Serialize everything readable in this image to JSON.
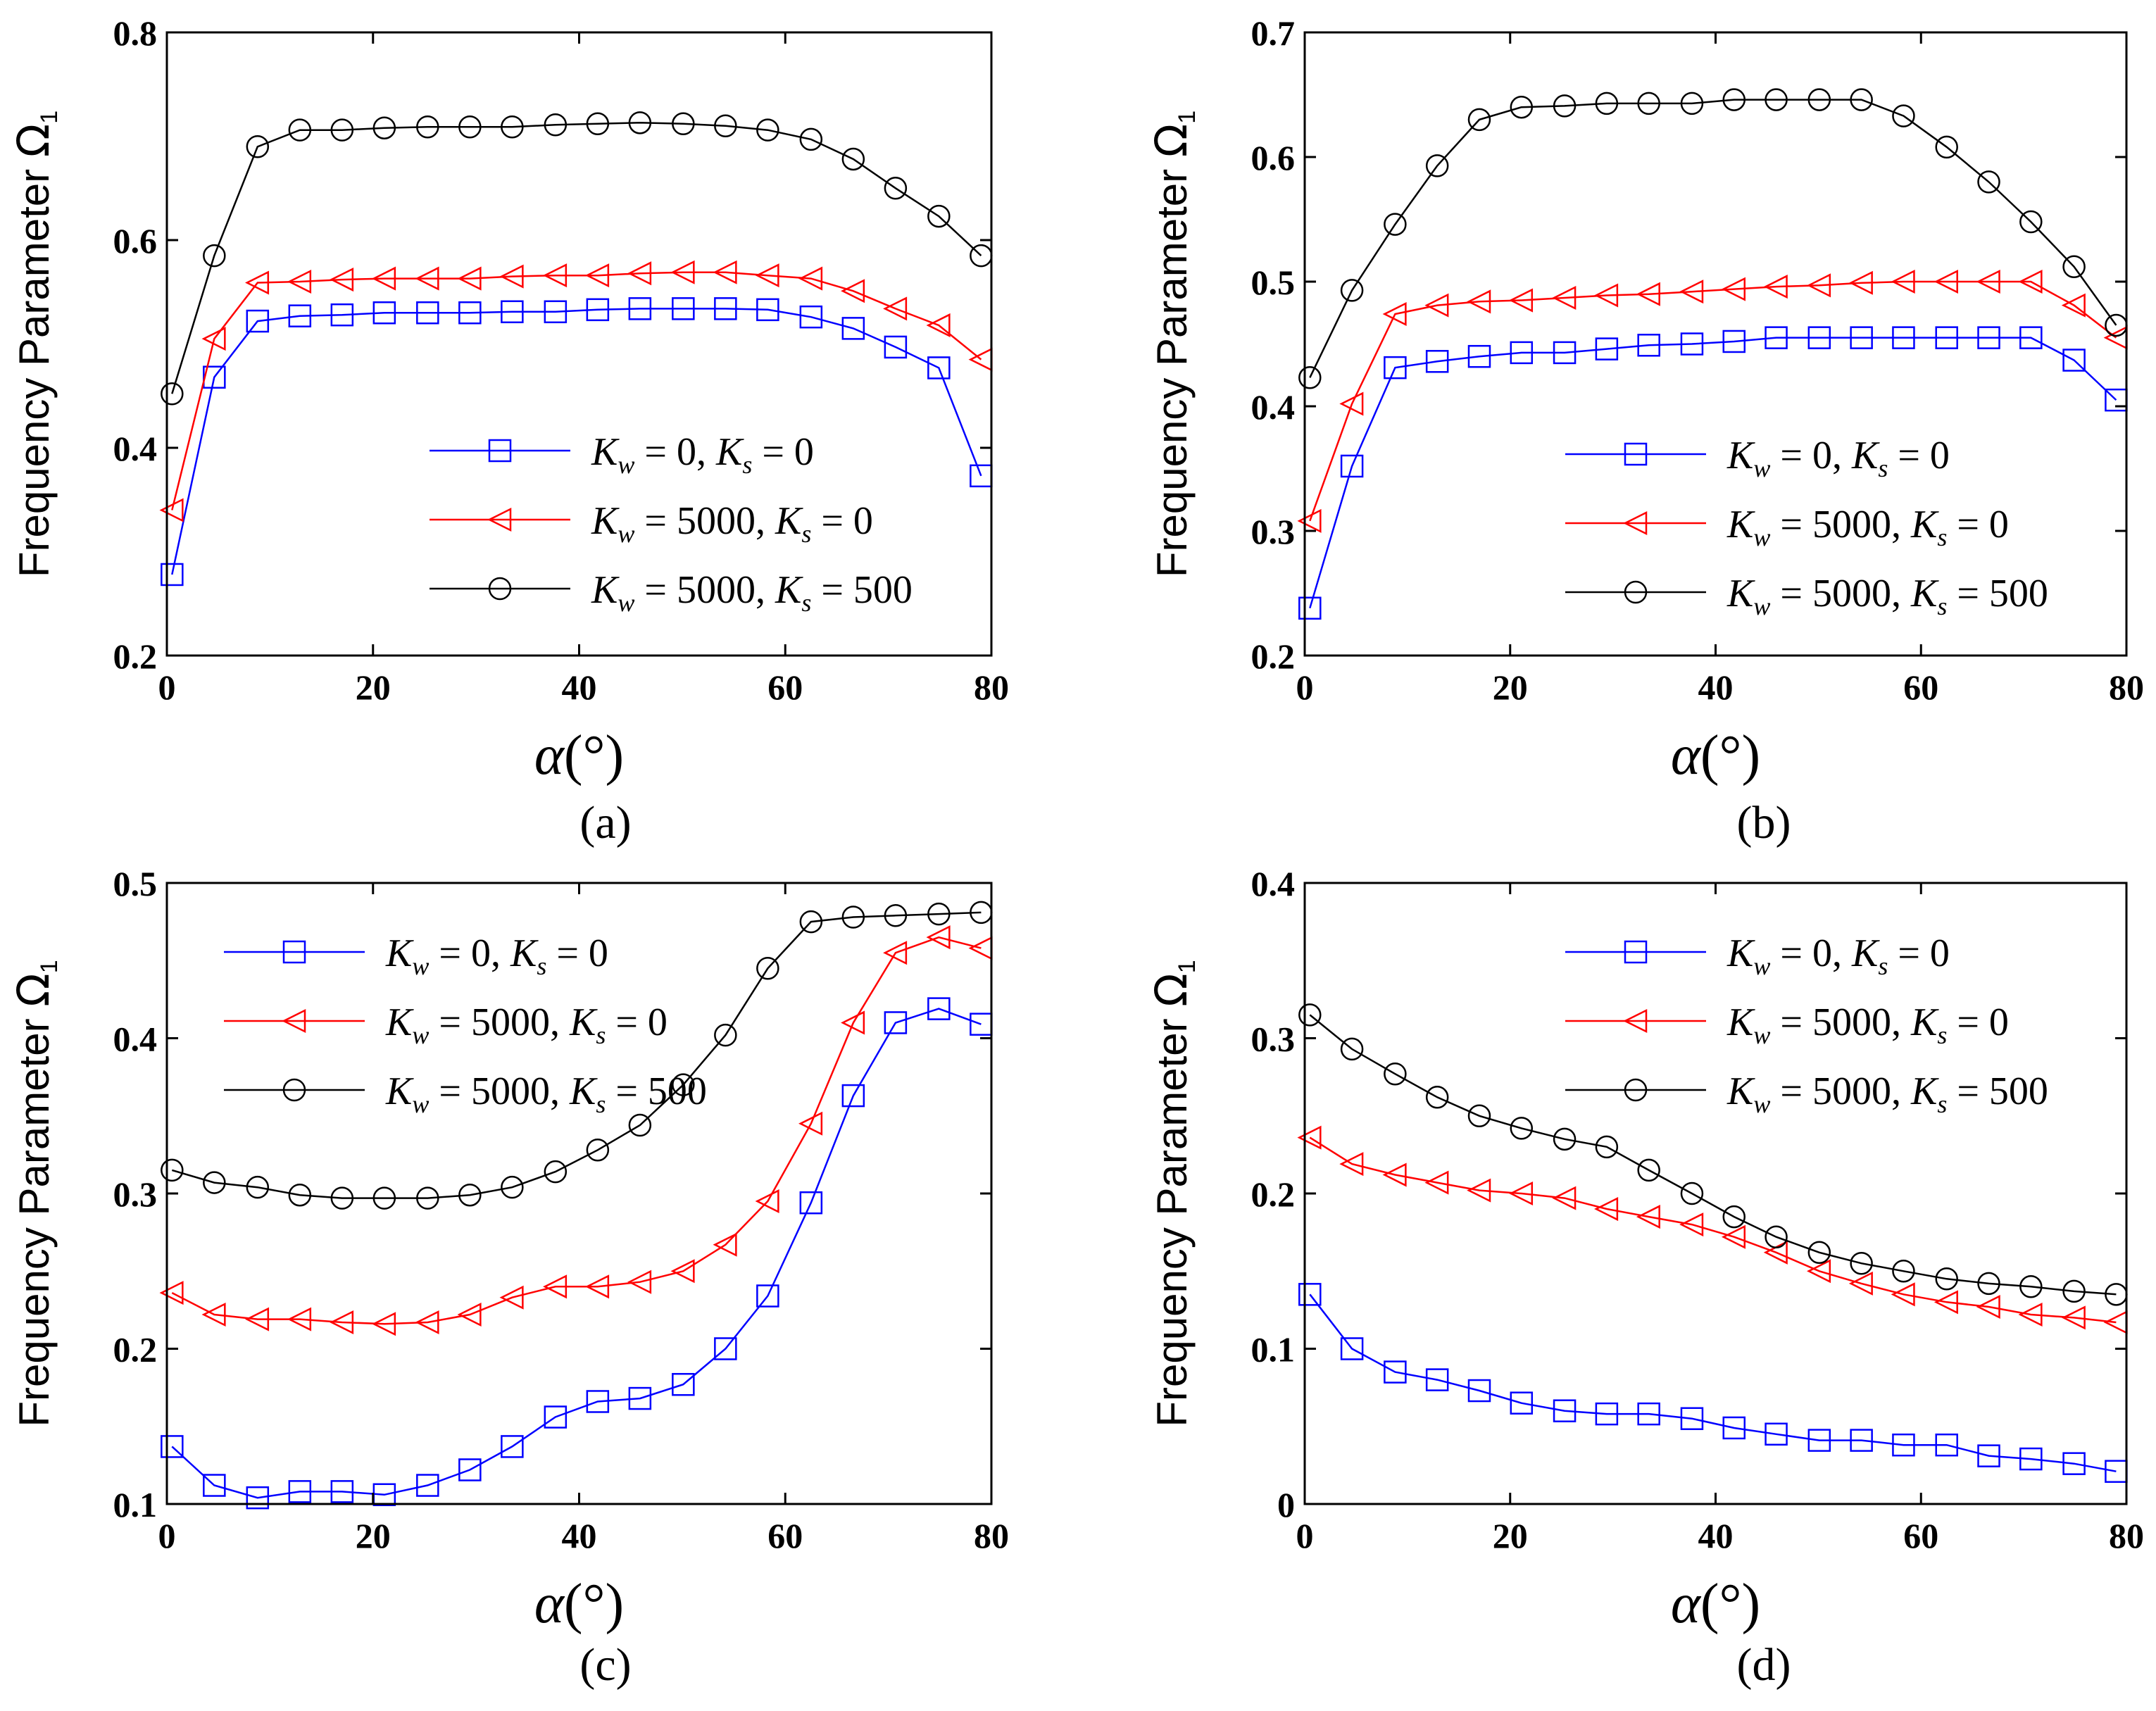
{
  "chart_data": [
    {
      "type": "line",
      "caption": "(a)",
      "ylabel": "Frequency Parameter",
      "ylabel_symbol": "Ω",
      "ylabel_sub": "1",
      "xlabel_symbol": "α",
      "xlabel_unit": "(°)",
      "xlim": [
        0,
        80
      ],
      "ylim": [
        0.2,
        0.8
      ],
      "xticks": [
        0,
        20,
        40,
        60,
        80
      ],
      "yticks": [
        0.2,
        0.4,
        0.6,
        0.8
      ],
      "legend_position": "lower-right",
      "x": [
        0.5,
        4.6,
        8.8,
        12.9,
        17.0,
        21.1,
        25.3,
        29.4,
        33.5,
        37.7,
        41.8,
        45.9,
        50.1,
        54.2,
        58.3,
        62.5,
        66.6,
        70.7,
        74.9,
        79.0
      ],
      "series": [
        {
          "name": "Kw=0, Ks=0",
          "kw": "0",
          "ks": "0",
          "color": "#0000ff",
          "marker": "square",
          "values": [
            0.278,
            0.468,
            0.522,
            0.527,
            0.528,
            0.53,
            0.53,
            0.53,
            0.531,
            0.531,
            0.533,
            0.534,
            0.534,
            0.534,
            0.533,
            0.526,
            0.515,
            0.497,
            0.477,
            0.373
          ]
        },
        {
          "name": "Kw=5000, Ks=0",
          "kw": "5000",
          "ks": "0",
          "color": "#ff0000",
          "marker": "triangle-left",
          "values": [
            0.34,
            0.505,
            0.559,
            0.56,
            0.562,
            0.563,
            0.563,
            0.563,
            0.565,
            0.566,
            0.566,
            0.568,
            0.569,
            0.569,
            0.566,
            0.563,
            0.551,
            0.534,
            0.518,
            0.485
          ]
        },
        {
          "name": "Kw=5000, Ks=500",
          "kw": "5000",
          "ks": "500",
          "color": "#000000",
          "marker": "circle",
          "values": [
            0.452,
            0.585,
            0.69,
            0.706,
            0.706,
            0.708,
            0.709,
            0.709,
            0.709,
            0.711,
            0.712,
            0.713,
            0.712,
            0.71,
            0.706,
            0.697,
            0.678,
            0.65,
            0.623,
            0.585
          ]
        }
      ]
    },
    {
      "type": "line",
      "caption": "(b)",
      "ylabel": "Frequency Parameter",
      "ylabel_symbol": "Ω",
      "ylabel_sub": "1",
      "xlabel_symbol": "α",
      "xlabel_unit": "(°)",
      "xlim": [
        0,
        80
      ],
      "ylim": [
        0.2,
        0.7
      ],
      "xticks": [
        0,
        20,
        40,
        60,
        80
      ],
      "yticks": [
        0.2,
        0.3,
        0.4,
        0.5,
        0.6,
        0.7
      ],
      "legend_position": "lower-right",
      "x": [
        0.5,
        4.6,
        8.8,
        12.9,
        17.0,
        21.1,
        25.3,
        29.4,
        33.5,
        37.7,
        41.8,
        45.9,
        50.1,
        54.2,
        58.3,
        62.5,
        66.6,
        70.7,
        74.9,
        79.0
      ],
      "series": [
        {
          "name": "Kw=0, Ks=0",
          "kw": "0",
          "ks": "0",
          "color": "#0000ff",
          "marker": "square",
          "values": [
            0.238,
            0.352,
            0.431,
            0.436,
            0.44,
            0.443,
            0.443,
            0.446,
            0.449,
            0.45,
            0.452,
            0.455,
            0.455,
            0.455,
            0.455,
            0.455,
            0.455,
            0.455,
            0.437,
            0.405
          ]
        },
        {
          "name": "Kw=5000, Ks=0",
          "kw": "5000",
          "ks": "0",
          "color": "#ff0000",
          "marker": "triangle-left",
          "values": [
            0.308,
            0.402,
            0.474,
            0.481,
            0.484,
            0.485,
            0.487,
            0.489,
            0.49,
            0.492,
            0.494,
            0.496,
            0.497,
            0.499,
            0.5,
            0.5,
            0.5,
            0.5,
            0.481,
            0.455
          ]
        },
        {
          "name": "Kw=5000, Ks=500",
          "kw": "5000",
          "ks": "500",
          "color": "#000000",
          "marker": "circle",
          "values": [
            0.423,
            0.493,
            0.546,
            0.593,
            0.63,
            0.64,
            0.641,
            0.643,
            0.643,
            0.643,
            0.646,
            0.646,
            0.646,
            0.646,
            0.633,
            0.608,
            0.58,
            0.548,
            0.512,
            0.465
          ]
        }
      ]
    },
    {
      "type": "line",
      "caption": "(c)",
      "ylabel": "Frequency Parameter",
      "ylabel_symbol": "Ω",
      "ylabel_sub": "1",
      "xlabel_symbol": "α",
      "xlabel_unit": "(°)",
      "xlim": [
        0,
        80
      ],
      "ylim": [
        0.1,
        0.5
      ],
      "xticks": [
        0,
        20,
        40,
        60,
        80
      ],
      "yticks": [
        0.1,
        0.2,
        0.3,
        0.4,
        0.5
      ],
      "legend_position": "upper-left",
      "x": [
        0.5,
        4.6,
        8.8,
        12.9,
        17.0,
        21.1,
        25.3,
        29.4,
        33.5,
        37.7,
        41.8,
        45.9,
        50.1,
        54.2,
        58.3,
        62.5,
        66.6,
        70.7,
        74.9,
        79.0
      ],
      "series": [
        {
          "name": "Kw=0, Ks=0",
          "kw": "0",
          "ks": "0",
          "color": "#0000ff",
          "marker": "square",
          "values": [
            0.137,
            0.112,
            0.104,
            0.108,
            0.108,
            0.106,
            0.112,
            0.122,
            0.137,
            0.156,
            0.166,
            0.168,
            0.177,
            0.2,
            0.234,
            0.294,
            0.363,
            0.41,
            0.419,
            0.409
          ]
        },
        {
          "name": "Kw=5000, Ks=0",
          "kw": "5000",
          "ks": "0",
          "color": "#ff0000",
          "marker": "triangle-left",
          "values": [
            0.236,
            0.222,
            0.219,
            0.219,
            0.217,
            0.216,
            0.217,
            0.222,
            0.233,
            0.24,
            0.24,
            0.243,
            0.25,
            0.267,
            0.295,
            0.345,
            0.41,
            0.455,
            0.465,
            0.458
          ]
        },
        {
          "name": "Kw=5000, Ks=500",
          "kw": "5000",
          "ks": "500",
          "color": "#000000",
          "marker": "circle",
          "values": [
            0.315,
            0.307,
            0.304,
            0.299,
            0.297,
            0.297,
            0.297,
            0.299,
            0.304,
            0.314,
            0.328,
            0.344,
            0.37,
            0.402,
            0.445,
            0.475,
            0.478,
            0.479,
            0.48,
            0.481
          ]
        }
      ]
    },
    {
      "type": "line",
      "caption": "(d)",
      "ylabel": "Frequency Parameter",
      "ylabel_symbol": "Ω",
      "ylabel_sub": "1",
      "xlabel_symbol": "α",
      "xlabel_unit": "(°)",
      "xlim": [
        0,
        80
      ],
      "ylim": [
        0,
        0.4
      ],
      "xticks": [
        0,
        20,
        40,
        60,
        80
      ],
      "yticks": [
        0,
        0.1,
        0.2,
        0.3,
        0.4
      ],
      "legend_position": "upper-right",
      "x": [
        0.5,
        4.6,
        8.8,
        12.9,
        17.0,
        21.1,
        25.3,
        29.4,
        33.5,
        37.7,
        41.8,
        45.9,
        50.1,
        54.2,
        58.3,
        62.5,
        66.6,
        70.7,
        74.9,
        79.0
      ],
      "series": [
        {
          "name": "Kw=0, Ks=0",
          "kw": "0",
          "ks": "0",
          "color": "#0000ff",
          "marker": "square",
          "values": [
            0.135,
            0.1,
            0.085,
            0.08,
            0.073,
            0.065,
            0.06,
            0.058,
            0.058,
            0.055,
            0.049,
            0.045,
            0.041,
            0.041,
            0.038,
            0.038,
            0.031,
            0.029,
            0.026,
            0.021
          ]
        },
        {
          "name": "Kw=5000, Ks=0",
          "kw": "5000",
          "ks": "0",
          "color": "#ff0000",
          "marker": "triangle-left",
          "values": [
            0.236,
            0.219,
            0.212,
            0.207,
            0.202,
            0.2,
            0.197,
            0.19,
            0.185,
            0.18,
            0.172,
            0.162,
            0.15,
            0.142,
            0.135,
            0.13,
            0.127,
            0.122,
            0.12,
            0.117
          ]
        },
        {
          "name": "Kw=5000, Ks=500",
          "kw": "5000",
          "ks": "500",
          "color": "#000000",
          "marker": "circle",
          "values": [
            0.315,
            0.293,
            0.277,
            0.262,
            0.25,
            0.242,
            0.235,
            0.23,
            0.215,
            0.2,
            0.185,
            0.172,
            0.162,
            0.155,
            0.15,
            0.145,
            0.142,
            0.14,
            0.137,
            0.135
          ]
        }
      ]
    }
  ]
}
